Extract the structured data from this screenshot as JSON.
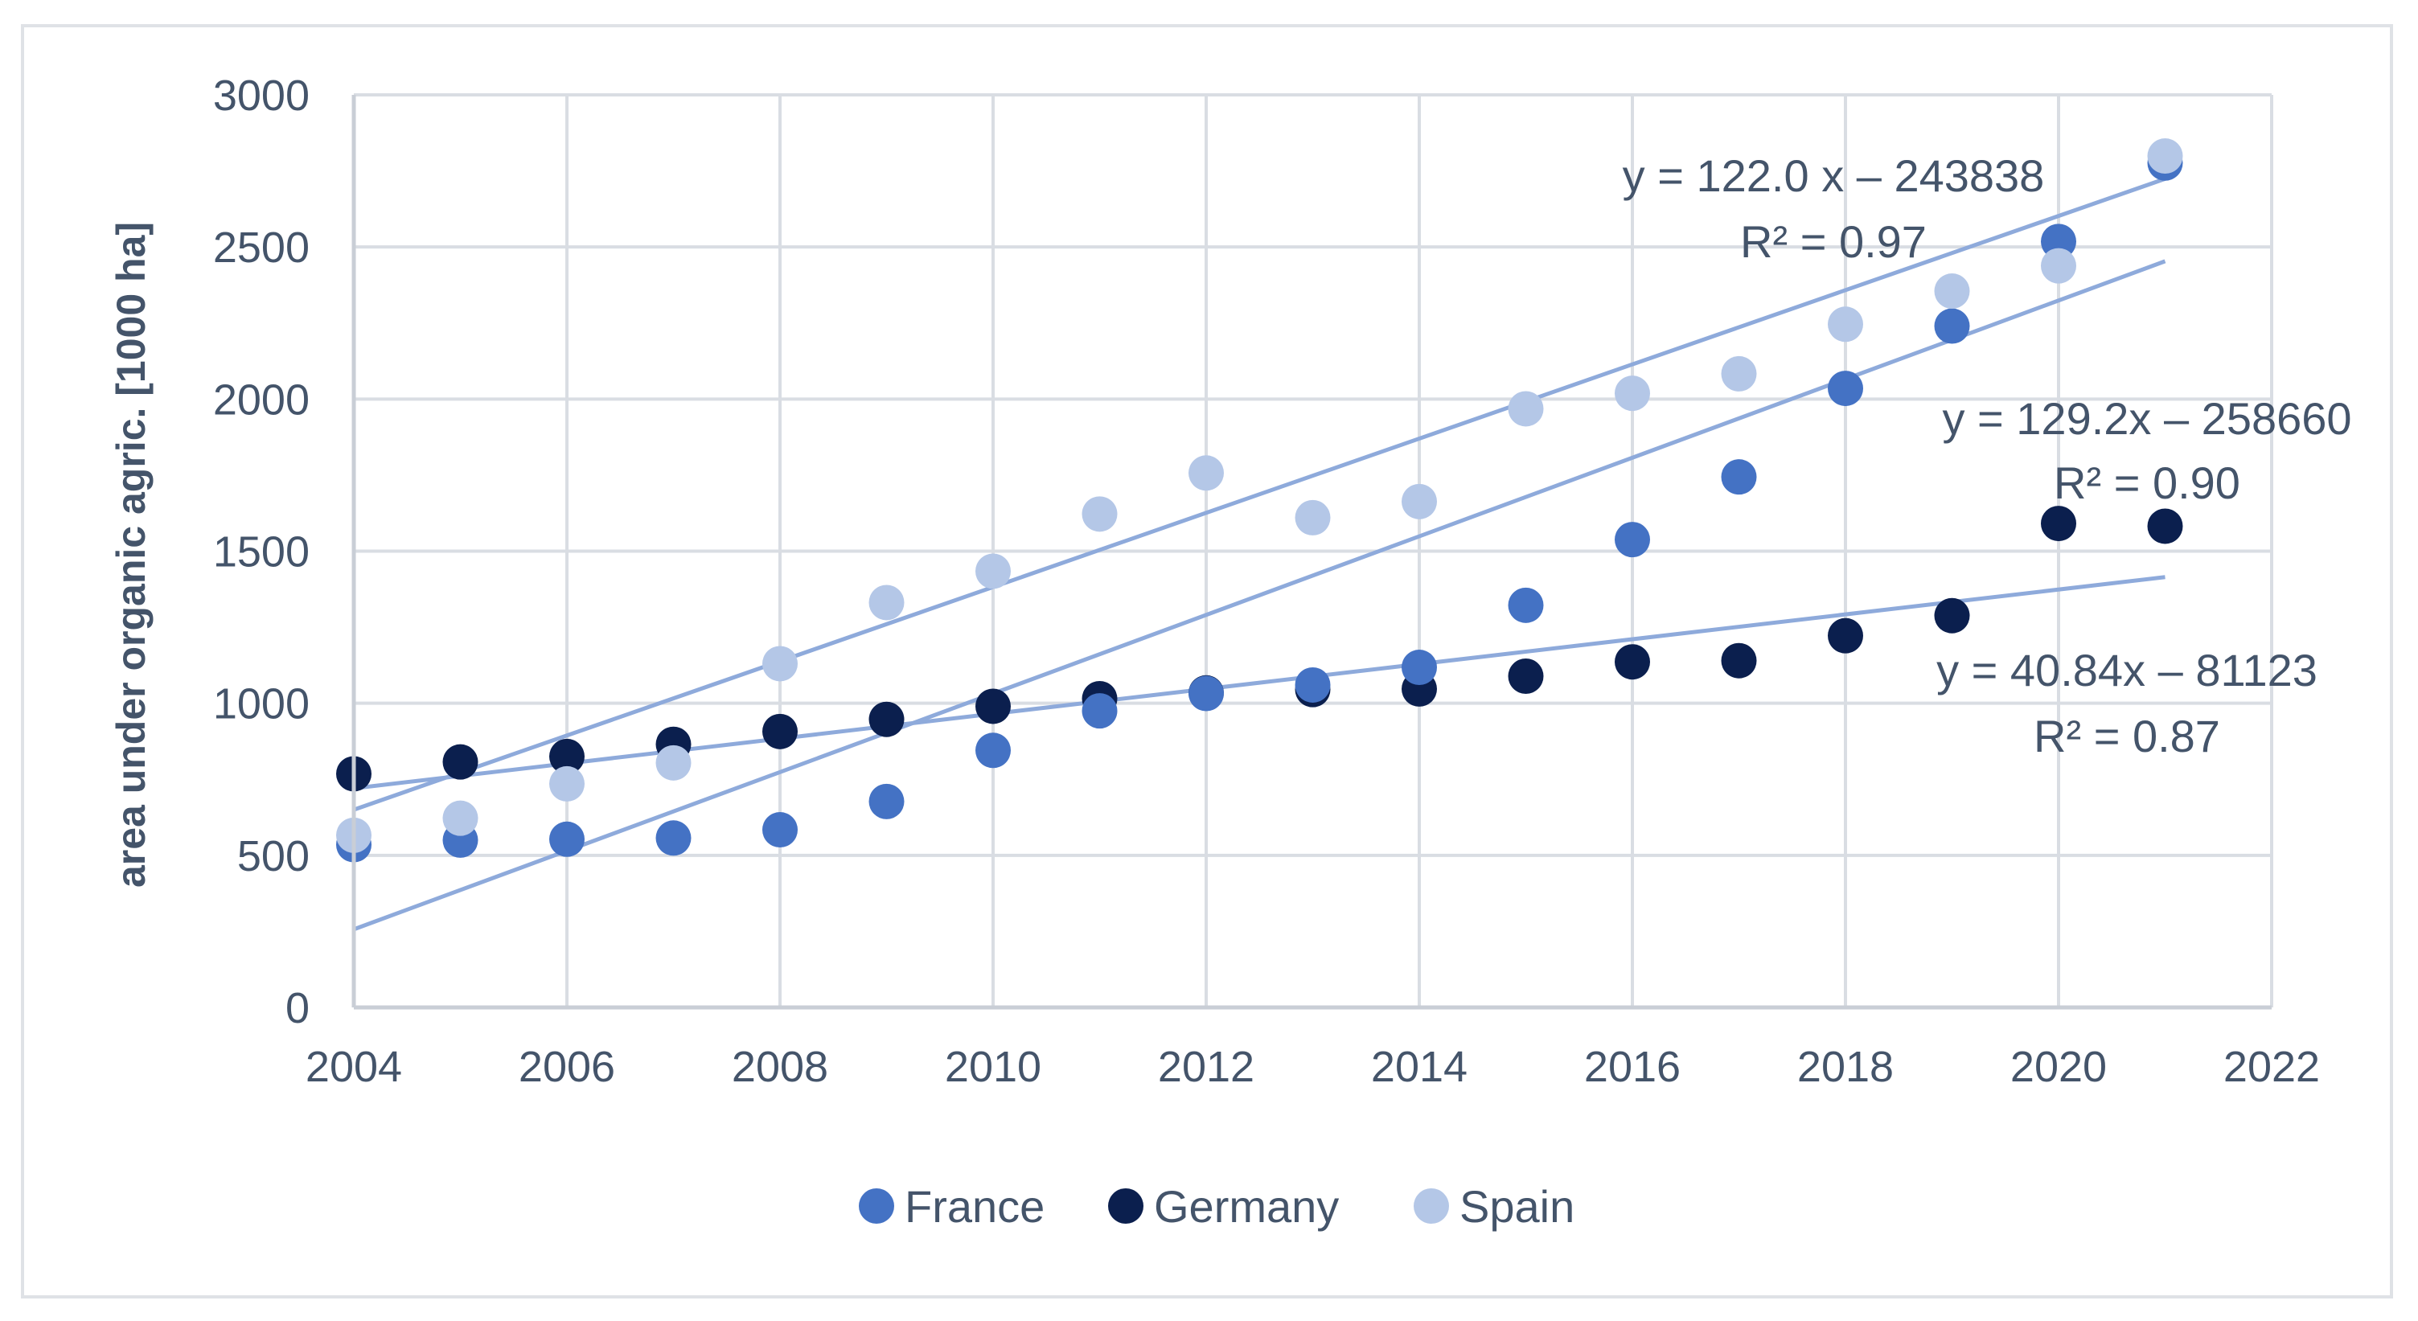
{
  "chart_data": {
    "type": "scatter",
    "title": "",
    "xlabel": "",
    "ylabel": "area under organic agric. [1000 ha]",
    "xlim": [
      2004,
      2022
    ],
    "ylim": [
      0,
      3000
    ],
    "xticks": [
      2004,
      2006,
      2008,
      2010,
      2012,
      2014,
      2016,
      2018,
      2020,
      2022
    ],
    "yticks": [
      0,
      500,
      1000,
      1500,
      2000,
      2500,
      3000
    ],
    "grid": true,
    "legend_position": "bottom",
    "colors": {
      "France": "#4472c4",
      "Germany": "#0b1f4e",
      "Spain": "#b4c7e7",
      "trendline": "#8eaadb",
      "text": "#44546a",
      "grid": "#d9dde3"
    },
    "x": [
      2004,
      2005,
      2006,
      2007,
      2008,
      2009,
      2010,
      2011,
      2012,
      2013,
      2014,
      2015,
      2016,
      2017,
      2018,
      2019,
      2020,
      2021
    ],
    "series": [
      {
        "name": "France",
        "x": [
          2004,
          2005,
          2006,
          2007,
          2008,
          2009,
          2010,
          2011,
          2012,
          2013,
          2014,
          2015,
          2016,
          2017,
          2018,
          2019,
          2020,
          2021
        ],
        "values": [
          535,
          550,
          553,
          557,
          584,
          677,
          845,
          975,
          1032,
          1060,
          1118,
          1322,
          1538,
          1744,
          2035,
          2240,
          2518,
          2776
        ]
      },
      {
        "name": "Germany",
        "x": [
          2004,
          2005,
          2006,
          2007,
          2008,
          2009,
          2010,
          2011,
          2012,
          2013,
          2014,
          2015,
          2016,
          2017,
          2018,
          2019,
          2020,
          2021
        ],
        "values": [
          768,
          807,
          825,
          865,
          907,
          947,
          990,
          1015,
          1034,
          1045,
          1047,
          1089,
          1136,
          1140,
          1222,
          1288,
          1591,
          1582
        ]
      },
      {
        "name": "Spain",
        "x": [
          2004,
          2005,
          2006,
          2007,
          2008,
          2009,
          2010,
          2011,
          2012,
          2013,
          2014,
          2015,
          2016,
          2017,
          2018,
          2019,
          2020,
          2021
        ],
        "values": [
          566,
          622,
          735,
          804,
          1130,
          1331,
          1434,
          1622,
          1757,
          1610,
          1663,
          1968,
          2019,
          2083,
          2246,
          2355,
          2438,
          2799
        ]
      }
    ],
    "trendlines": [
      {
        "series": "Spain",
        "slope": 122.0,
        "intercept": -243838,
        "x_range": [
          2004,
          2021
        ],
        "equation": "y = 122.0 x – 243838",
        "r2": "R² = 0.97"
      },
      {
        "series": "France",
        "slope": 129.2,
        "intercept": -258660,
        "x_range": [
          2004,
          2021
        ],
        "equation": "y = 129.2x – 258660",
        "r2": "R² = 0.90"
      },
      {
        "series": "Germany",
        "slope": 40.84,
        "intercept": -81123,
        "x_range": [
          2004,
          2021
        ],
        "equation": "y = 40.84x – 81123",
        "r2": "R² = 0.87"
      }
    ]
  }
}
